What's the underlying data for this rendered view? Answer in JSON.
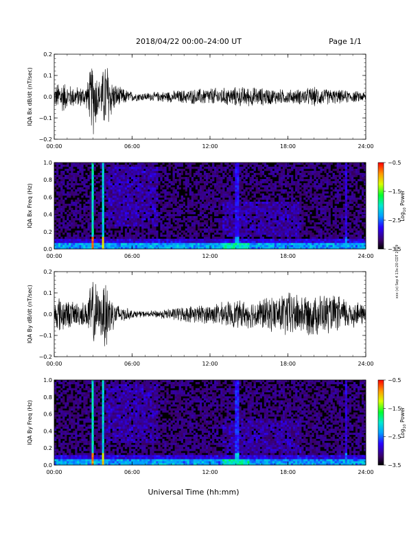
{
  "header": {
    "title": "2018/04/22  00:00–24:00 UT",
    "page": "Page 1/1"
  },
  "footer": {
    "xlabel": "Universal Time (hh:mm)"
  },
  "side_note": "xxx (x) Sep 4 13x:20 CDT 2019",
  "chart_data": [
    {
      "type": "line",
      "id": "bx_dbdt",
      "ylabel": "IQA Bx dB/dt (nT/sec)",
      "x_ticks": [
        "00:00",
        "06:00",
        "12:00",
        "18:00",
        "24:00"
      ],
      "xlim": [
        0,
        24
      ],
      "ylim": [
        -0.2,
        0.2
      ],
      "y_ticks": [
        -0.2,
        -0.1,
        0.0,
        0.1,
        0.2
      ],
      "y_tick_labels": [
        "−0.2",
        "−0.1",
        "0.0",
        "0.1",
        "0.2"
      ],
      "envelope": {
        "x": [
          0,
          0.5,
          1,
          2,
          2.5,
          3,
          3.5,
          4,
          4.5,
          5,
          6,
          7,
          8,
          9,
          10,
          11,
          12,
          13,
          14,
          15,
          16,
          17,
          18,
          19,
          20,
          21,
          22,
          23,
          24
        ],
        "amplitude": [
          0.05,
          0.09,
          0.06,
          0.05,
          0.06,
          0.2,
          0.08,
          0.2,
          0.08,
          0.05,
          0.025,
          0.02,
          0.025,
          0.03,
          0.035,
          0.04,
          0.045,
          0.045,
          0.05,
          0.05,
          0.045,
          0.04,
          0.035,
          0.04,
          0.05,
          0.04,
          0.035,
          0.03,
          0.025
        ]
      }
    },
    {
      "type": "heatmap",
      "id": "bx_spectrogram",
      "ylabel": "IQA Bx Freq (Hz)",
      "x_ticks": [
        "00:00",
        "06:00",
        "12:00",
        "18:00",
        "24:00"
      ],
      "xlim": [
        0,
        24
      ],
      "ylim": [
        0,
        1.0
      ],
      "y_ticks": [
        0.0,
        0.2,
        0.4,
        0.6,
        0.8,
        1.0
      ],
      "y_tick_labels": [
        "0.0",
        "0.2",
        "0.4",
        "0.6",
        "0.8",
        "1.0"
      ],
      "colorbar": {
        "label": "Log10 Power",
        "range": [
          -3.5,
          -0.5
        ],
        "ticks": [
          -0.5,
          -1.5,
          -2.5,
          -3.5
        ],
        "tick_labels": [
          "−0.5",
          "−1.5",
          "−2.5",
          "−3.5"
        ]
      },
      "features": [
        {
          "x": 2.95,
          "strength": 0.85
        },
        {
          "x": 3.75,
          "strength": 0.75
        },
        {
          "x": 14.1,
          "strength": 0.35
        },
        {
          "x": 22.5,
          "strength": 0.3
        }
      ]
    },
    {
      "type": "line",
      "id": "by_dbdt",
      "ylabel": "IQA By dB/dt (nT/sec)",
      "x_ticks": [
        "00:00",
        "06:00",
        "12:00",
        "18:00",
        "24:00"
      ],
      "xlim": [
        0,
        24
      ],
      "ylim": [
        -0.2,
        0.2
      ],
      "y_ticks": [
        -0.2,
        -0.1,
        0.0,
        0.1,
        0.2
      ],
      "y_tick_labels": [
        "−0.2",
        "−0.1",
        "0.0",
        "0.1",
        "0.2"
      ],
      "envelope": {
        "x": [
          0,
          0.5,
          1,
          2,
          2.5,
          3,
          3.5,
          4,
          4.5,
          5,
          6,
          7,
          8,
          9,
          10,
          11,
          12,
          13,
          14,
          15,
          16,
          17,
          18,
          19,
          20,
          21,
          22,
          23,
          24
        ],
        "amplitude": [
          0.06,
          0.1,
          0.07,
          0.06,
          0.07,
          0.2,
          0.09,
          0.2,
          0.08,
          0.05,
          0.02,
          0.015,
          0.02,
          0.03,
          0.04,
          0.045,
          0.05,
          0.06,
          0.07,
          0.07,
          0.08,
          0.09,
          0.12,
          0.1,
          0.11,
          0.1,
          0.09,
          0.07,
          0.05
        ]
      }
    },
    {
      "type": "heatmap",
      "id": "by_spectrogram",
      "ylabel": "IQA By Freq (Hz)",
      "x_ticks": [
        "00:00",
        "06:00",
        "12:00",
        "18:00",
        "24:00"
      ],
      "xlim": [
        0,
        24
      ],
      "ylim": [
        0,
        1.0
      ],
      "y_ticks": [
        0.0,
        0.2,
        0.4,
        0.6,
        0.8,
        1.0
      ],
      "y_tick_labels": [
        "0.0",
        "0.2",
        "0.4",
        "0.6",
        "0.8",
        "1.0"
      ],
      "colorbar": {
        "label": "Log10 Power",
        "range": [
          -3.5,
          -0.5
        ],
        "ticks": [
          -0.5,
          -1.5,
          -2.5,
          -3.5
        ],
        "tick_labels": [
          "−0.5",
          "−1.5",
          "−2.5",
          "−3.5"
        ]
      },
      "features": [
        {
          "x": 2.95,
          "strength": 0.85
        },
        {
          "x": 3.75,
          "strength": 0.75
        },
        {
          "x": 14.1,
          "strength": 0.4
        },
        {
          "x": 22.5,
          "strength": 0.3
        }
      ]
    }
  ]
}
